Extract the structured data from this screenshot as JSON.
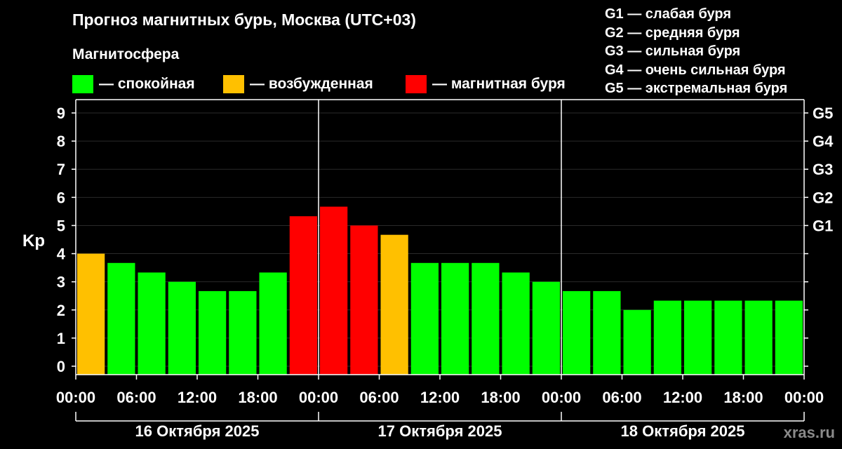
{
  "header": {
    "title": "Прогноз магнитных бурь, Москва (UTC+03)",
    "subtitle": "Магнитосфера"
  },
  "legend": [
    {
      "label": "— спокойная",
      "color": "#00ff00"
    },
    {
      "label": "— возбужденная",
      "color": "#ffc000"
    },
    {
      "label": "— магнитная буря",
      "color": "#ff0000"
    }
  ],
  "g_scale": [
    "G1 — слабая буря",
    "G2 — средняя буря",
    "G3 — сильная буря",
    "G4 — очень сильная буря",
    "G5 — экстремальная буря"
  ],
  "watermark": "xras.ru",
  "chart_data": {
    "type": "bar",
    "title": "Прогноз магнитных бурь, Москва (UTC+03)",
    "ylabel": "Kp",
    "ylim": [
      0,
      9
    ],
    "yticks": [
      "0",
      "1",
      "2",
      "3",
      "4",
      "5",
      "6",
      "7",
      "8",
      "9"
    ],
    "right_ticks": [
      {
        "kp": 5,
        "label": "G1"
      },
      {
        "kp": 6,
        "label": "G2"
      },
      {
        "kp": 7,
        "label": "G3"
      },
      {
        "kp": 8,
        "label": "G4"
      },
      {
        "kp": 9,
        "label": "G5"
      }
    ],
    "x_tick_labels": [
      "00:00",
      "06:00",
      "12:00",
      "18:00",
      "00:00",
      "06:00",
      "12:00",
      "18:00",
      "00:00",
      "06:00",
      "12:00",
      "18:00",
      "00:00"
    ],
    "days": [
      "16 Октября 2025",
      "17 Октября 2025",
      "18 Октября 2025"
    ],
    "interval_hours": 3,
    "values": [
      4.0,
      3.67,
      3.33,
      3.0,
      2.67,
      2.67,
      3.33,
      5.33,
      5.67,
      5.0,
      4.67,
      3.67,
      3.67,
      3.67,
      3.33,
      3.0,
      2.67,
      2.67,
      2.0,
      2.33,
      2.33,
      2.33,
      2.33,
      2.33
    ],
    "colors": {
      "quiet": "#00ff00",
      "active": "#ffc000",
      "storm": "#ff0000"
    },
    "grid": true
  }
}
